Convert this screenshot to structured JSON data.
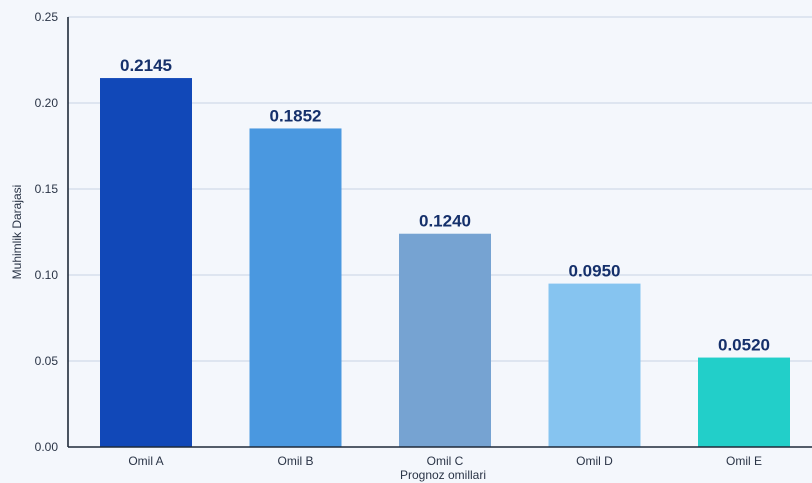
{
  "chart_data": {
    "type": "bar",
    "categories": [
      "Omil A",
      "Omil B",
      "Omil C",
      "Omil D",
      "Omil E"
    ],
    "values": [
      0.2145,
      0.1852,
      0.124,
      0.095,
      0.052
    ],
    "value_labels": [
      "0.2145",
      "0.1852",
      "0.1240",
      "0.0950",
      "0.0520"
    ],
    "colors": [
      "#1148b8",
      "#4a98e0",
      "#76a3d2",
      "#86c4f0",
      "#22cfc9"
    ],
    "xlabel": "Prognoz omillari",
    "ylabel": "Muhimlik Darajasi",
    "ylim": [
      0,
      0.25
    ],
    "yticks": [
      0.0,
      0.05,
      0.1,
      0.15,
      0.2,
      0.25
    ],
    "ytick_labels": [
      "0.00",
      "0.05",
      "0.10",
      "0.15",
      "0.20",
      "0.25"
    ],
    "grid": true
  }
}
